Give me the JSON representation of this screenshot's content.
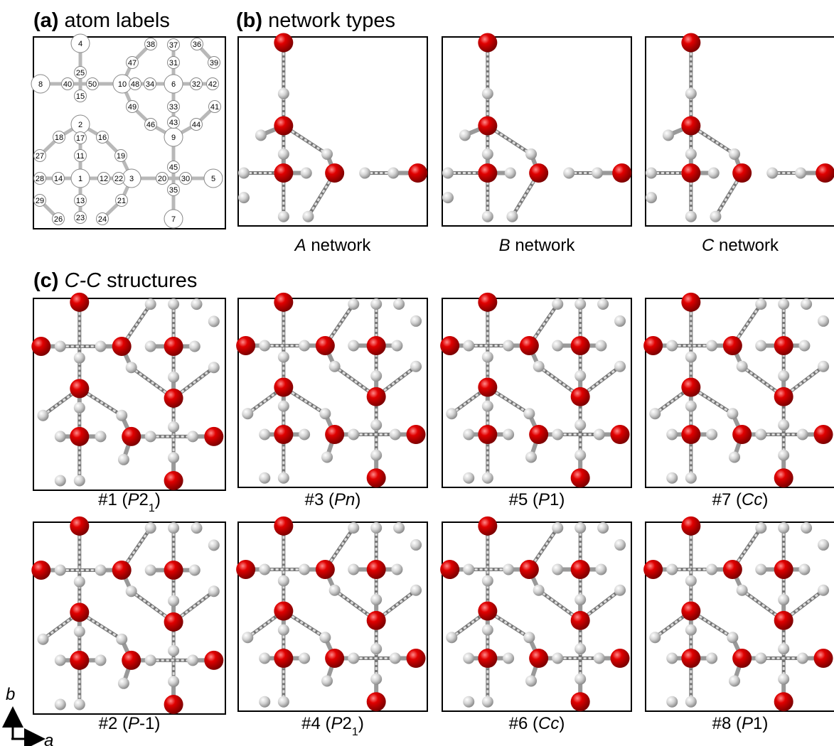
{
  "panel_a": {
    "label": "(a)",
    "title": "atom labels",
    "atoms": [
      "1",
      "2",
      "3",
      "4",
      "5",
      "6",
      "7",
      "8",
      "9",
      "10",
      "11",
      "12",
      "13",
      "14",
      "15",
      "16",
      "17",
      "18",
      "19",
      "20",
      "21",
      "22",
      "23",
      "24",
      "25",
      "26",
      "27",
      "28",
      "29",
      "30",
      "31",
      "32",
      "33",
      "34",
      "35",
      "36",
      "37",
      "38",
      "39",
      "40",
      "41",
      "42",
      "43",
      "44",
      "45",
      "46",
      "47",
      "48",
      "49",
      "50"
    ]
  },
  "panel_b": {
    "label": "(b)",
    "title": "network types",
    "captions": [
      [
        {
          "t": "A",
          "i": true
        },
        {
          "t": " network"
        }
      ],
      [
        {
          "t": "B",
          "i": true
        },
        {
          "t": " network"
        }
      ],
      [
        {
          "t": "C",
          "i": true
        },
        {
          "t": " network"
        }
      ]
    ]
  },
  "panel_c": {
    "label": "(c)",
    "title": [
      {
        "t": "C-C",
        "i": true
      },
      {
        "t": " structures"
      }
    ],
    "captions": [
      [
        {
          "t": "#1 ("
        },
        {
          "t": "P",
          "i": true
        },
        {
          "t": "2"
        },
        {
          "t": "1",
          "sub": true
        },
        {
          "t": ")"
        }
      ],
      [
        {
          "t": "#3 ("
        },
        {
          "t": "Pn",
          "i": true
        },
        {
          "t": ")"
        }
      ],
      [
        {
          "t": "#5 ("
        },
        {
          "t": "P",
          "i": true
        },
        {
          "t": "1"
        },
        {
          "t": ")"
        }
      ],
      [
        {
          "t": "#7 ("
        },
        {
          "t": "Cc",
          "i": true
        },
        {
          "t": ")"
        }
      ],
      [
        {
          "t": "#2 ("
        },
        {
          "t": "P",
          "i": true
        },
        {
          "t": "-1"
        },
        {
          "t": ")"
        }
      ],
      [
        {
          "t": "#4 ("
        },
        {
          "t": "P",
          "i": true
        },
        {
          "t": "2"
        },
        {
          "t": "1",
          "sub": true
        },
        {
          "t": ")"
        }
      ],
      [
        {
          "t": "#6 ("
        },
        {
          "t": "Cc",
          "i": true
        },
        {
          "t": ")"
        }
      ],
      [
        {
          "t": "#8 ("
        },
        {
          "t": "P",
          "i": true
        },
        {
          "t": "1"
        },
        {
          "t": ")"
        }
      ]
    ]
  },
  "axes": {
    "vertical": "b",
    "horizontal": "a"
  }
}
